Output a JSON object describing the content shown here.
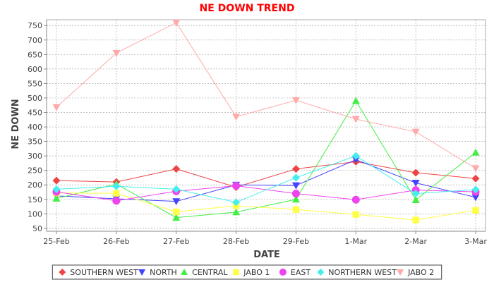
{
  "chart_data": {
    "type": "line",
    "title": "NE DOWN TREND",
    "xlabel": "DATE",
    "ylabel": "NE DOWN",
    "categories": [
      "25-Feb",
      "26-Feb",
      "27-Feb",
      "28-Feb",
      "29-Feb",
      "1-Mar",
      "2-Mar",
      "3-Mar"
    ],
    "ylim": [
      40,
      770
    ],
    "yticks": [
      50,
      100,
      150,
      200,
      250,
      300,
      350,
      400,
      450,
      500,
      550,
      600,
      650,
      700,
      750
    ],
    "grid": true,
    "legend_position": "bottom",
    "series": [
      {
        "name": "SOUTHERN WEST",
        "color": "#ee4444",
        "marker": "diamond",
        "values": [
          215,
          210,
          255,
          192,
          255,
          280,
          242,
          222
        ]
      },
      {
        "name": "NORTH",
        "color": "#4444ff",
        "marker": "triangle-down",
        "values": [
          162,
          152,
          143,
          200,
          198,
          287,
          207,
          157
        ]
      },
      {
        "name": "CENTRAL",
        "color": "#44ee44",
        "marker": "triangle-up",
        "values": [
          153,
          203,
          87,
          106,
          150,
          490,
          148,
          312
        ]
      },
      {
        "name": "JABO 1",
        "color": "#ffff44",
        "marker": "square",
        "values": [
          172,
          171,
          107,
          128,
          115,
          98,
          79,
          112
        ]
      },
      {
        "name": "EAST",
        "color": "#ee44ee",
        "marker": "circle",
        "values": [
          176,
          145,
          178,
          197,
          170,
          149,
          182,
          176
        ]
      },
      {
        "name": "NORTHERN WEST",
        "color": "#44eeee",
        "marker": "diamond",
        "values": [
          185,
          195,
          185,
          140,
          225,
          300,
          170,
          184
        ]
      },
      {
        "name": "JABO 2",
        "color": "#ffaaaa",
        "marker": "triangle-down",
        "values": [
          468,
          655,
          760,
          435,
          492,
          427,
          383,
          257
        ]
      }
    ]
  }
}
